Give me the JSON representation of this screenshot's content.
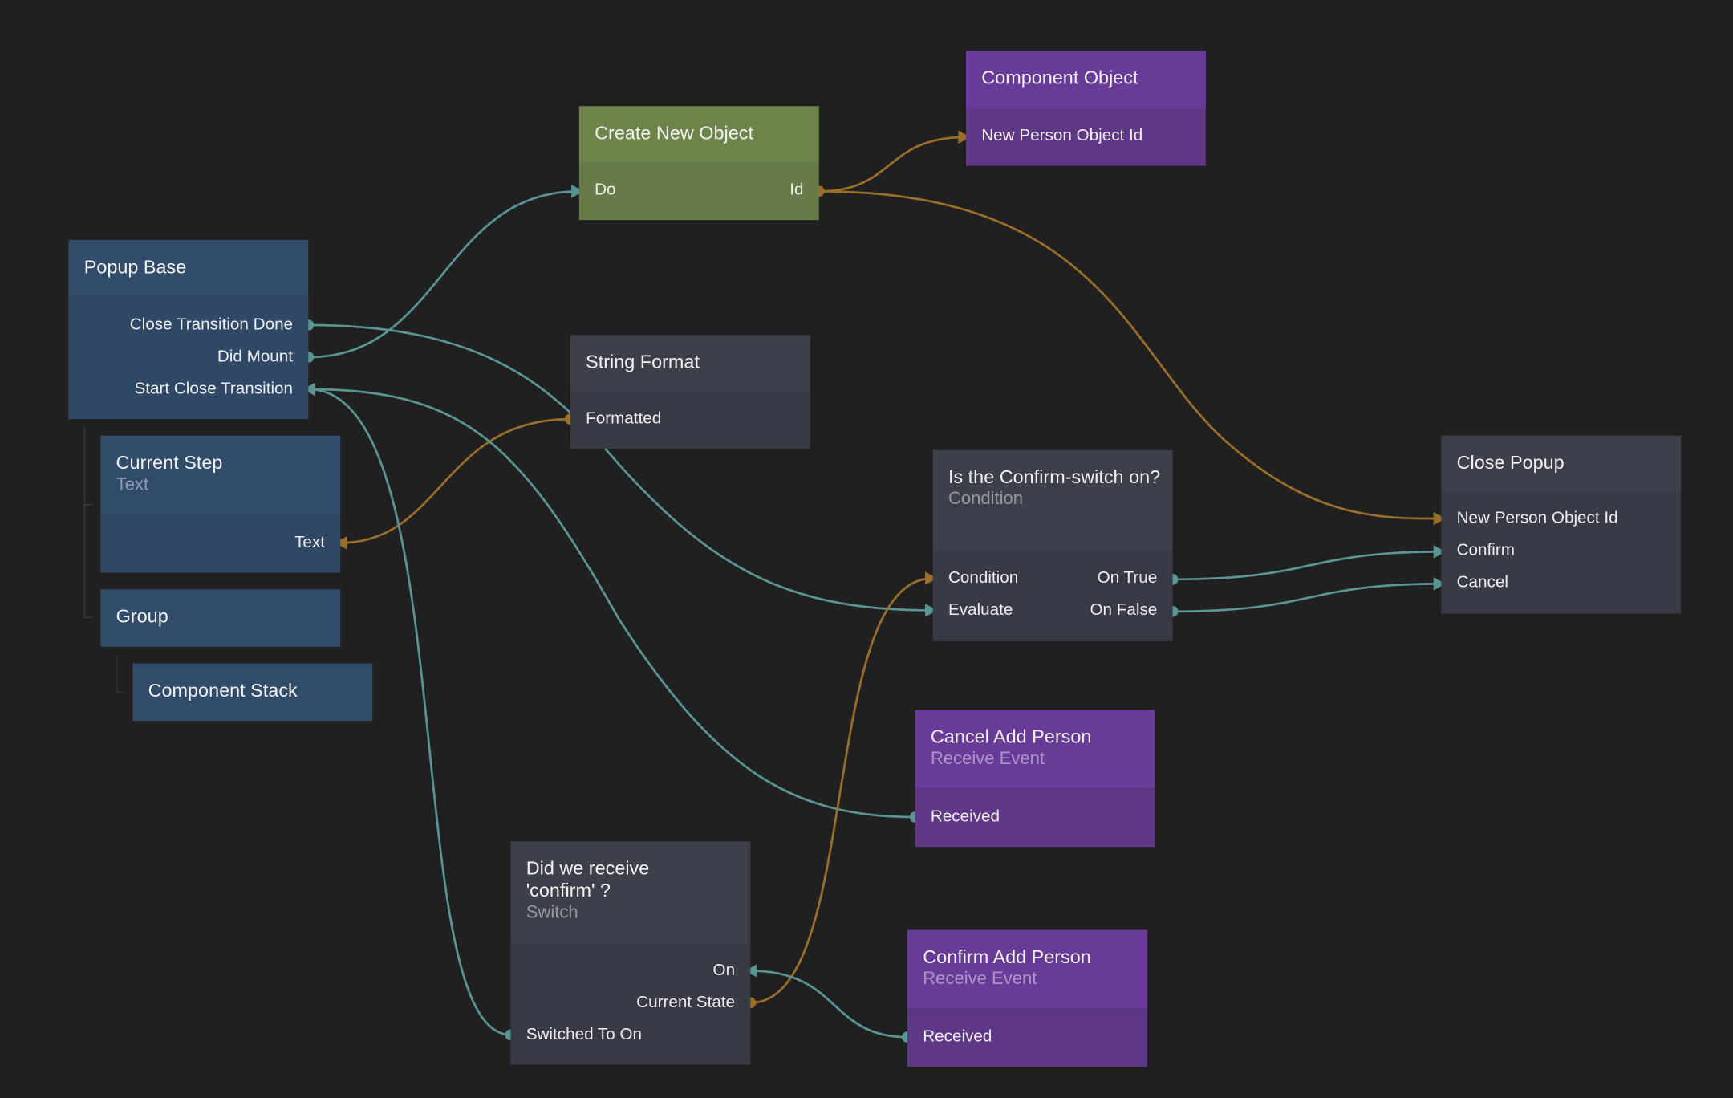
{
  "colors": {
    "background": "#202020",
    "signal": "#5a9595",
    "data": "#9b6f2a",
    "visual": "#314b6b",
    "logic": "#3d404b",
    "object": "#6d8349",
    "event": "#673b97"
  },
  "nodes": {
    "popup_base": {
      "title": "Popup Base",
      "ports": [
        "Close Transition Done",
        "Did Mount",
        "Start Close Transition"
      ]
    },
    "current_step": {
      "title": "Current Step",
      "type": "Text",
      "ports": [
        "Text"
      ]
    },
    "group": {
      "title": "Group"
    },
    "component_stack": {
      "title": "Component Stack"
    },
    "create_new_object": {
      "title": "Create New Object",
      "ports": [
        "Do",
        "Id"
      ]
    },
    "component_object": {
      "title": "Component Object",
      "ports": [
        "New Person Object Id"
      ]
    },
    "string_format": {
      "title": "String Format",
      "ports": [
        "Formatted"
      ]
    },
    "condition": {
      "title": "Is the Confirm-switch on?",
      "type": "Condition",
      "ports": [
        "Condition",
        "On True",
        "Evaluate",
        "On False"
      ]
    },
    "close_popup": {
      "title": "Close Popup",
      "ports": [
        "New Person Object Id",
        "Confirm",
        "Cancel"
      ]
    },
    "cancel_add_person": {
      "title": "Cancel Add Person",
      "type": "Receive Event",
      "ports": [
        "Received"
      ]
    },
    "switch": {
      "title": "Did we receive 'confirm' ?",
      "type": "Switch",
      "ports": [
        "On",
        "Current State",
        "Switched To On"
      ]
    },
    "confirm_add_person": {
      "title": "Confirm Add Person",
      "type": "Receive Event",
      "ports": [
        "Received"
      ]
    }
  }
}
